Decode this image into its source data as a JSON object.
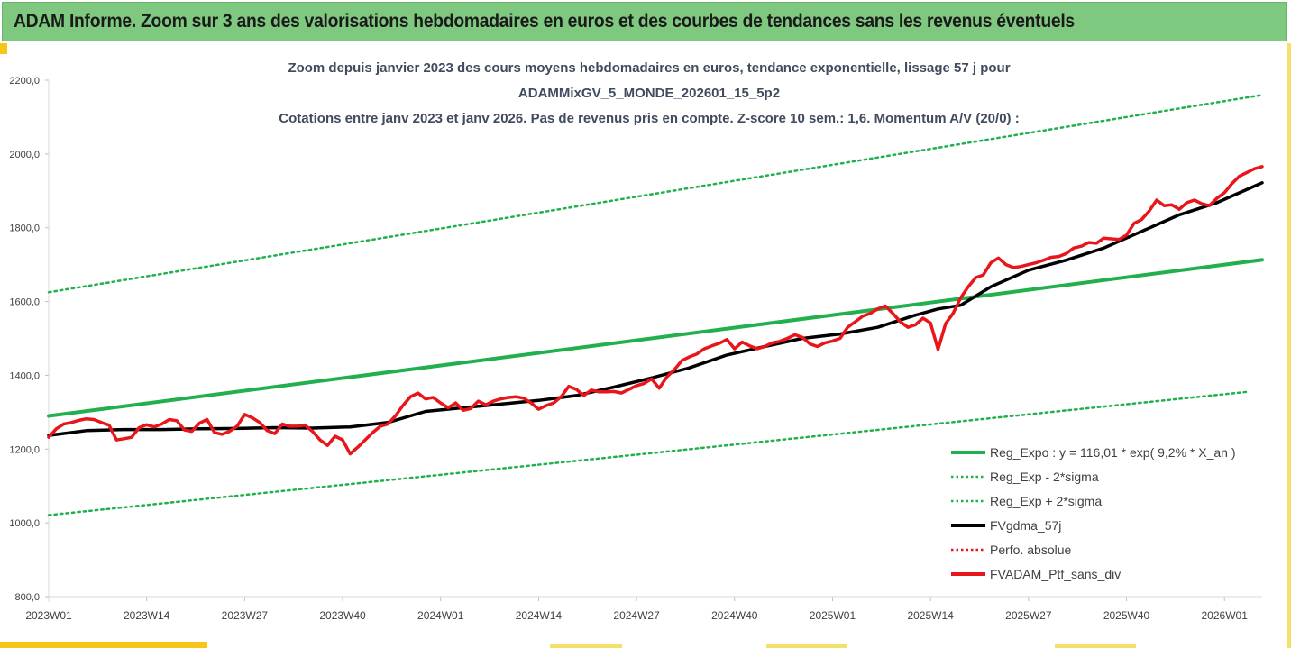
{
  "header": {
    "title": "ADAM Informe. Zoom sur 3 ans des valorisations hebdomadaires en euros et des courbes de tendances sans les revenus éventuels"
  },
  "colors": {
    "header_bg": "#7fc87f",
    "green": "#22b04f",
    "black": "#000000",
    "red": "#e8161b",
    "title": "#404b5e"
  },
  "chart_data": {
    "type": "line",
    "title_lines": [
      "Zoom depuis janvier 2023 des cours moyens hebdomadaires  en euros, tendance exponentielle, lissage 57 j pour",
      "ADAMMixGV_5_MONDE_202601_15_5p2",
      "Cotations  entre janv 2023 et janv 2026. Pas de revenus pris en compte. Z-score 10 sem.: 1,6. Momentum A/V (20/0) :"
    ],
    "ylim": [
      800,
      2200
    ],
    "y_ticks": [
      800,
      1000,
      1200,
      1400,
      1600,
      1800,
      2000,
      2200
    ],
    "y_tick_labels": [
      "800,0",
      "1000,0",
      "1200,0",
      "1400,0",
      "1600,0",
      "1800,0",
      "2000,0",
      "2200,0"
    ],
    "x_range_weeks": [
      0,
      161
    ],
    "x_ticks": [
      0,
      13,
      26,
      39,
      52,
      65,
      78,
      91,
      104,
      117,
      130,
      143,
      156
    ],
    "x_tick_labels": [
      "2023W01",
      "2023W14",
      "2023W27",
      "2023W40",
      "2024W01",
      "2024W14",
      "2024W27",
      "2024W40",
      "2025W01",
      "2025W14",
      "2025W27",
      "2025W40",
      "2026W01"
    ],
    "legend": [
      {
        "label": "Reg_Expo : y = 116,01 * exp( 9,2% *  X_an )",
        "style": "solid",
        "color": "#22b04f"
      },
      {
        "label": "Reg_Exp - 2*sigma",
        "style": "dotted",
        "color": "#22b04f"
      },
      {
        "label": "Reg_Exp + 2*sigma",
        "style": "dotted",
        "color": "#22b04f"
      },
      {
        "label": "FVgdma_57j",
        "style": "solid",
        "color": "#000000"
      },
      {
        "label": "Perfo. absolue",
        "style": "dotted",
        "color": "#e8161b"
      },
      {
        "label": "FVADAM_Ptf_sans_div",
        "style": "solid",
        "color": "#e8161b"
      }
    ],
    "series": [
      {
        "name": "Reg_Expo",
        "x": [
          0,
          161
        ],
        "values": [
          1290,
          1713
        ]
      },
      {
        "name": "Reg_Exp - 2*sigma",
        "x": [
          0,
          159
        ],
        "values": [
          1021,
          1355
        ]
      },
      {
        "name": "Reg_Exp + 2*sigma",
        "x": [
          0,
          161
        ],
        "values": [
          1625,
          2160
        ]
      },
      {
        "name": "FVgdma_57j",
        "x": [
          0,
          5,
          10,
          15,
          20,
          25,
          30,
          35,
          40,
          45,
          50,
          55,
          60,
          65,
          70,
          75,
          80,
          85,
          90,
          95,
          100,
          105,
          110,
          115,
          118,
          121,
          125,
          130,
          135,
          140,
          145,
          150,
          155,
          161
        ],
        "values": [
          1237,
          1250,
          1253,
          1253,
          1255,
          1256,
          1258,
          1257,
          1260,
          1272,
          1302,
          1312,
          1322,
          1332,
          1345,
          1368,
          1393,
          1420,
          1455,
          1478,
          1500,
          1512,
          1530,
          1563,
          1580,
          1590,
          1640,
          1685,
          1712,
          1745,
          1790,
          1835,
          1868,
          1922
        ]
      },
      {
        "name": "FVADAM_Ptf_sans_div",
        "x": [
          0,
          1,
          2,
          3,
          4,
          5,
          6,
          7,
          8,
          9,
          10,
          11,
          12,
          13,
          14,
          15,
          16,
          17,
          18,
          19,
          20,
          21,
          22,
          23,
          24,
          25,
          26,
          27,
          28,
          29,
          30,
          31,
          32,
          33,
          34,
          35,
          36,
          37,
          38,
          39,
          40,
          41,
          42,
          43,
          44,
          45,
          46,
          47,
          48,
          49,
          50,
          51,
          52,
          53,
          54,
          55,
          56,
          57,
          58,
          59,
          60,
          61,
          62,
          63,
          64,
          65,
          66,
          67,
          68,
          69,
          70,
          71,
          72,
          73,
          74,
          75,
          76,
          77,
          78,
          79,
          80,
          81,
          82,
          83,
          84,
          85,
          86,
          87,
          88,
          89,
          90,
          91,
          92,
          93,
          94,
          95,
          96,
          97,
          98,
          99,
          100,
          101,
          102,
          103,
          104,
          105,
          106,
          107,
          108,
          109,
          110,
          111,
          112,
          113,
          114,
          115,
          116,
          117,
          118,
          119,
          120,
          121,
          122,
          123,
          124,
          125,
          126,
          127,
          128,
          129,
          130,
          131,
          132,
          133,
          134,
          135,
          136,
          137,
          138,
          139,
          140,
          141,
          142,
          143,
          144,
          145,
          146,
          147,
          148,
          149,
          150,
          151,
          152,
          153,
          154,
          155,
          156,
          157,
          158,
          159,
          160,
          161
        ],
        "values": [
          1232,
          1255,
          1268,
          1272,
          1278,
          1282,
          1280,
          1272,
          1265,
          1225,
          1228,
          1232,
          1258,
          1266,
          1260,
          1268,
          1280,
          1277,
          1252,
          1248,
          1270,
          1280,
          1245,
          1240,
          1248,
          1262,
          1294,
          1285,
          1272,
          1250,
          1242,
          1268,
          1262,
          1262,
          1265,
          1248,
          1225,
          1210,
          1235,
          1225,
          1187,
          1205,
          1225,
          1245,
          1262,
          1268,
          1290,
          1318,
          1342,
          1352,
          1336,
          1340,
          1325,
          1312,
          1325,
          1305,
          1310,
          1330,
          1320,
          1330,
          1336,
          1340,
          1342,
          1338,
          1325,
          1308,
          1318,
          1325,
          1342,
          1370,
          1362,
          1345,
          1360,
          1355,
          1355,
          1356,
          1352,
          1362,
          1372,
          1378,
          1390,
          1365,
          1395,
          1415,
          1440,
          1450,
          1458,
          1472,
          1480,
          1487,
          1497,
          1472,
          1490,
          1480,
          1472,
          1478,
          1488,
          1492,
          1500,
          1510,
          1503,
          1485,
          1478,
          1488,
          1493,
          1500,
          1530,
          1545,
          1560,
          1568,
          1580,
          1588,
          1568,
          1545,
          1530,
          1537,
          1555,
          1542,
          1470,
          1540,
          1568,
          1610,
          1640,
          1665,
          1672,
          1705,
          1718,
          1700,
          1692,
          1695,
          1700,
          1705,
          1712,
          1720,
          1722,
          1730,
          1745,
          1750,
          1760,
          1758,
          1772,
          1770,
          1768,
          1780,
          1812,
          1822,
          1845,
          1875,
          1860,
          1862,
          1850,
          1868,
          1875,
          1865,
          1860,
          1880,
          1895,
          1920,
          1940,
          1950,
          1960,
          1966
        ]
      }
    ]
  }
}
